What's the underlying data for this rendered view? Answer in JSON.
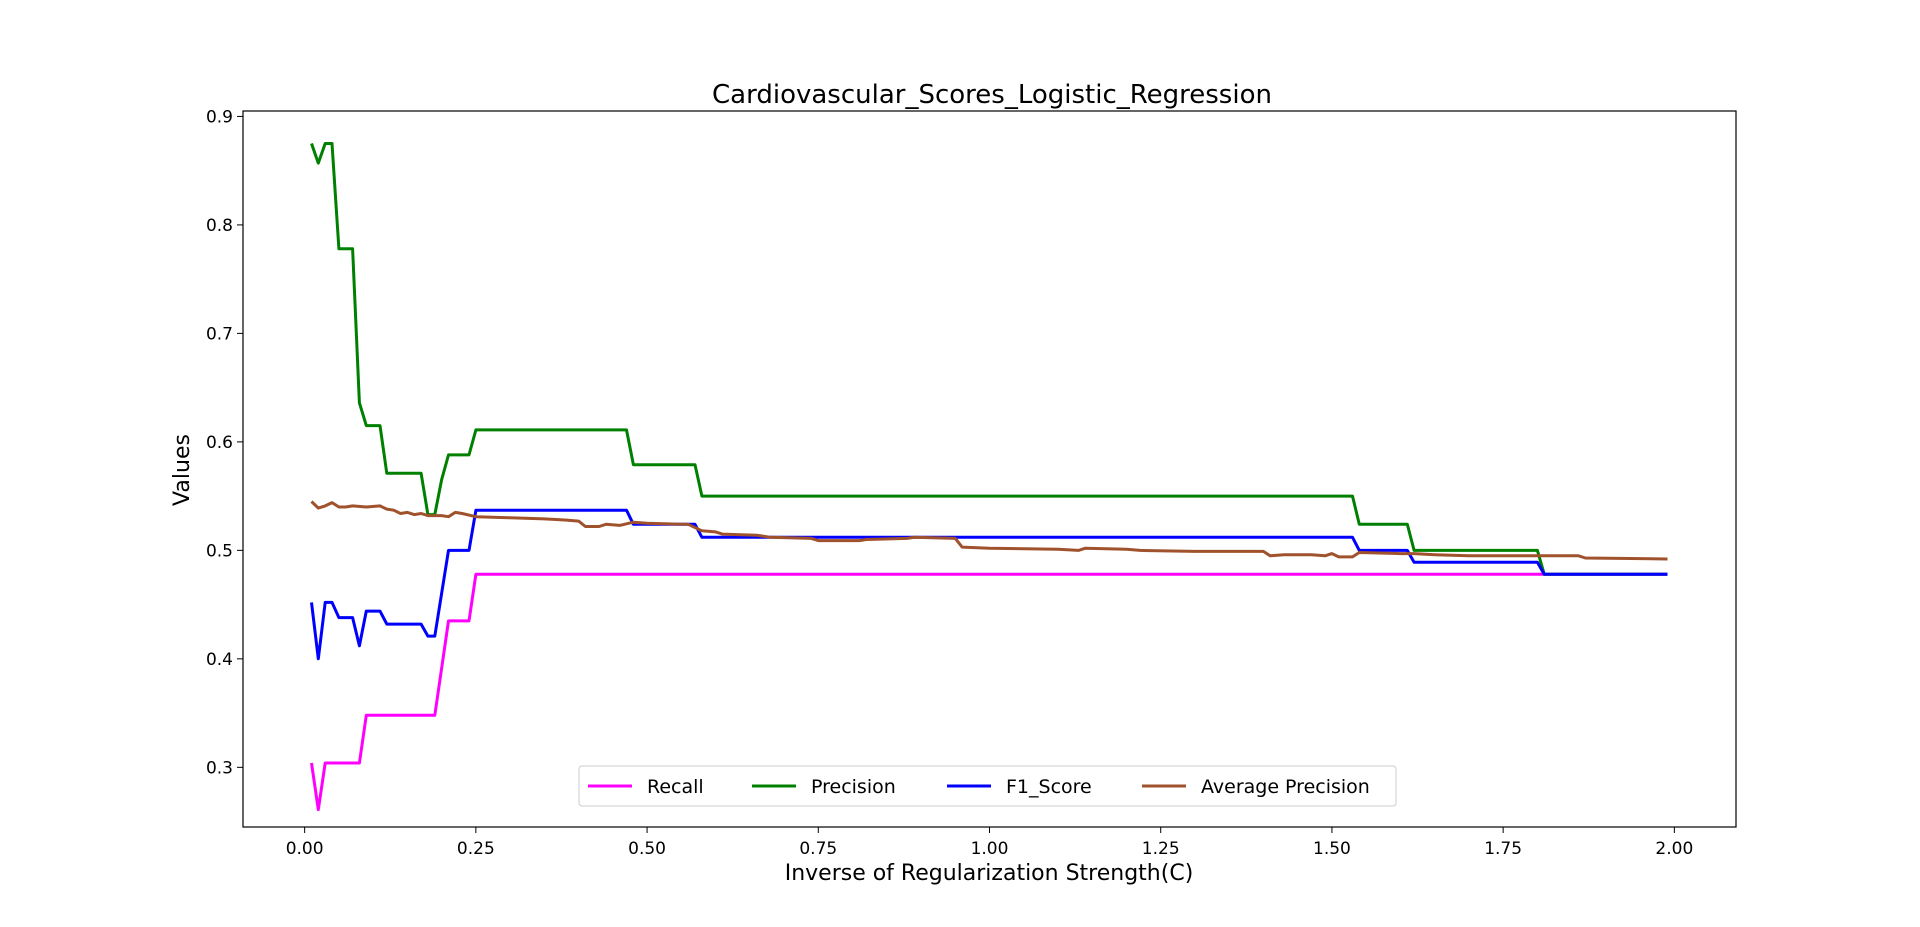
{
  "chart_data": {
    "type": "line",
    "title": "Cardiovascular_Scores_Logistic_Regression",
    "xlabel": "Inverse of Regularization Strength(C)",
    "ylabel": "Values",
    "xlim": [
      -0.09,
      2.09
    ],
    "ylim": [
      0.245,
      0.905
    ],
    "xticks": [
      "0.00",
      "0.25",
      "0.50",
      "0.75",
      "1.00",
      "1.25",
      "1.50",
      "1.75",
      "2.00"
    ],
    "yticks": [
      "0.3",
      "0.4",
      "0.5",
      "0.6",
      "0.7",
      "0.8",
      "0.9"
    ],
    "grid": false,
    "legend_position": "lower center",
    "series": [
      {
        "name": "Recall",
        "color": "#ff00ff",
        "points": [
          [
            0.01,
            0.304
          ],
          [
            0.02,
            0.261
          ],
          [
            0.03,
            0.304
          ],
          [
            0.08,
            0.304
          ],
          [
            0.09,
            0.348
          ],
          [
            0.19,
            0.348
          ],
          [
            0.21,
            0.435
          ],
          [
            0.24,
            0.435
          ],
          [
            0.25,
            0.478
          ],
          [
            1.99,
            0.478
          ]
        ]
      },
      {
        "name": "Precision",
        "color": "#008000",
        "points": [
          [
            0.01,
            0.875
          ],
          [
            0.02,
            0.857
          ],
          [
            0.03,
            0.875
          ],
          [
            0.04,
            0.875
          ],
          [
            0.05,
            0.778
          ],
          [
            0.07,
            0.778
          ],
          [
            0.08,
            0.636
          ],
          [
            0.09,
            0.615
          ],
          [
            0.11,
            0.615
          ],
          [
            0.12,
            0.571
          ],
          [
            0.17,
            0.571
          ],
          [
            0.18,
            0.533
          ],
          [
            0.19,
            0.533
          ],
          [
            0.2,
            0.565
          ],
          [
            0.21,
            0.588
          ],
          [
            0.24,
            0.588
          ],
          [
            0.25,
            0.611
          ],
          [
            0.47,
            0.611
          ],
          [
            0.48,
            0.579
          ],
          [
            0.57,
            0.579
          ],
          [
            0.58,
            0.55
          ],
          [
            1.53,
            0.55
          ],
          [
            1.54,
            0.524
          ],
          [
            1.61,
            0.524
          ],
          [
            1.62,
            0.5
          ],
          [
            1.8,
            0.5
          ],
          [
            1.81,
            0.478
          ],
          [
            1.99,
            0.478
          ]
        ]
      },
      {
        "name": "F1_Score",
        "color": "#0000ff",
        "points": [
          [
            0.01,
            0.452
          ],
          [
            0.02,
            0.4
          ],
          [
            0.03,
            0.452
          ],
          [
            0.04,
            0.452
          ],
          [
            0.05,
            0.438
          ],
          [
            0.07,
            0.438
          ],
          [
            0.08,
            0.412
          ],
          [
            0.09,
            0.444
          ],
          [
            0.11,
            0.444
          ],
          [
            0.12,
            0.432
          ],
          [
            0.17,
            0.432
          ],
          [
            0.18,
            0.421
          ],
          [
            0.19,
            0.421
          ],
          [
            0.21,
            0.5
          ],
          [
            0.24,
            0.5
          ],
          [
            0.25,
            0.537
          ],
          [
            0.47,
            0.537
          ],
          [
            0.48,
            0.524
          ],
          [
            0.57,
            0.524
          ],
          [
            0.58,
            0.512
          ],
          [
            1.53,
            0.512
          ],
          [
            1.54,
            0.5
          ],
          [
            1.61,
            0.5
          ],
          [
            1.62,
            0.489
          ],
          [
            1.8,
            0.489
          ],
          [
            1.81,
            0.478
          ],
          [
            1.99,
            0.478
          ]
        ]
      },
      {
        "name": "Average Precision",
        "color": "#a0522d",
        "points": [
          [
            0.01,
            0.545
          ],
          [
            0.02,
            0.539
          ],
          [
            0.03,
            0.541
          ],
          [
            0.04,
            0.544
          ],
          [
            0.05,
            0.54
          ],
          [
            0.06,
            0.54
          ],
          [
            0.07,
            0.541
          ],
          [
            0.09,
            0.54
          ],
          [
            0.11,
            0.541
          ],
          [
            0.12,
            0.538
          ],
          [
            0.13,
            0.537
          ],
          [
            0.14,
            0.534
          ],
          [
            0.15,
            0.535
          ],
          [
            0.16,
            0.533
          ],
          [
            0.17,
            0.534
          ],
          [
            0.18,
            0.532
          ],
          [
            0.2,
            0.532
          ],
          [
            0.21,
            0.531
          ],
          [
            0.22,
            0.535
          ],
          [
            0.23,
            0.534
          ],
          [
            0.25,
            0.531
          ],
          [
            0.3,
            0.53
          ],
          [
            0.35,
            0.529
          ],
          [
            0.38,
            0.528
          ],
          [
            0.4,
            0.527
          ],
          [
            0.41,
            0.522
          ],
          [
            0.43,
            0.522
          ],
          [
            0.44,
            0.524
          ],
          [
            0.46,
            0.523
          ],
          [
            0.48,
            0.526
          ],
          [
            0.5,
            0.525
          ],
          [
            0.55,
            0.524
          ],
          [
            0.56,
            0.524
          ],
          [
            0.58,
            0.518
          ],
          [
            0.6,
            0.517
          ],
          [
            0.61,
            0.515
          ],
          [
            0.66,
            0.514
          ],
          [
            0.68,
            0.512
          ],
          [
            0.74,
            0.511
          ],
          [
            0.75,
            0.509
          ],
          [
            0.81,
            0.509
          ],
          [
            0.82,
            0.51
          ],
          [
            0.88,
            0.511
          ],
          [
            0.89,
            0.512
          ],
          [
            0.95,
            0.511
          ],
          [
            0.96,
            0.503
          ],
          [
            1.0,
            0.502
          ],
          [
            1.1,
            0.501
          ],
          [
            1.13,
            0.5
          ],
          [
            1.14,
            0.502
          ],
          [
            1.2,
            0.501
          ],
          [
            1.22,
            0.5
          ],
          [
            1.3,
            0.499
          ],
          [
            1.4,
            0.499
          ],
          [
            1.41,
            0.495
          ],
          [
            1.43,
            0.496
          ],
          [
            1.47,
            0.496
          ],
          [
            1.49,
            0.495
          ],
          [
            1.5,
            0.497
          ],
          [
            1.51,
            0.494
          ],
          [
            1.53,
            0.494
          ],
          [
            1.54,
            0.498
          ],
          [
            1.6,
            0.497
          ],
          [
            1.62,
            0.497
          ],
          [
            1.65,
            0.496
          ],
          [
            1.7,
            0.495
          ],
          [
            1.8,
            0.495
          ],
          [
            1.86,
            0.495
          ],
          [
            1.87,
            0.493
          ],
          [
            1.99,
            0.492
          ]
        ]
      }
    ]
  }
}
